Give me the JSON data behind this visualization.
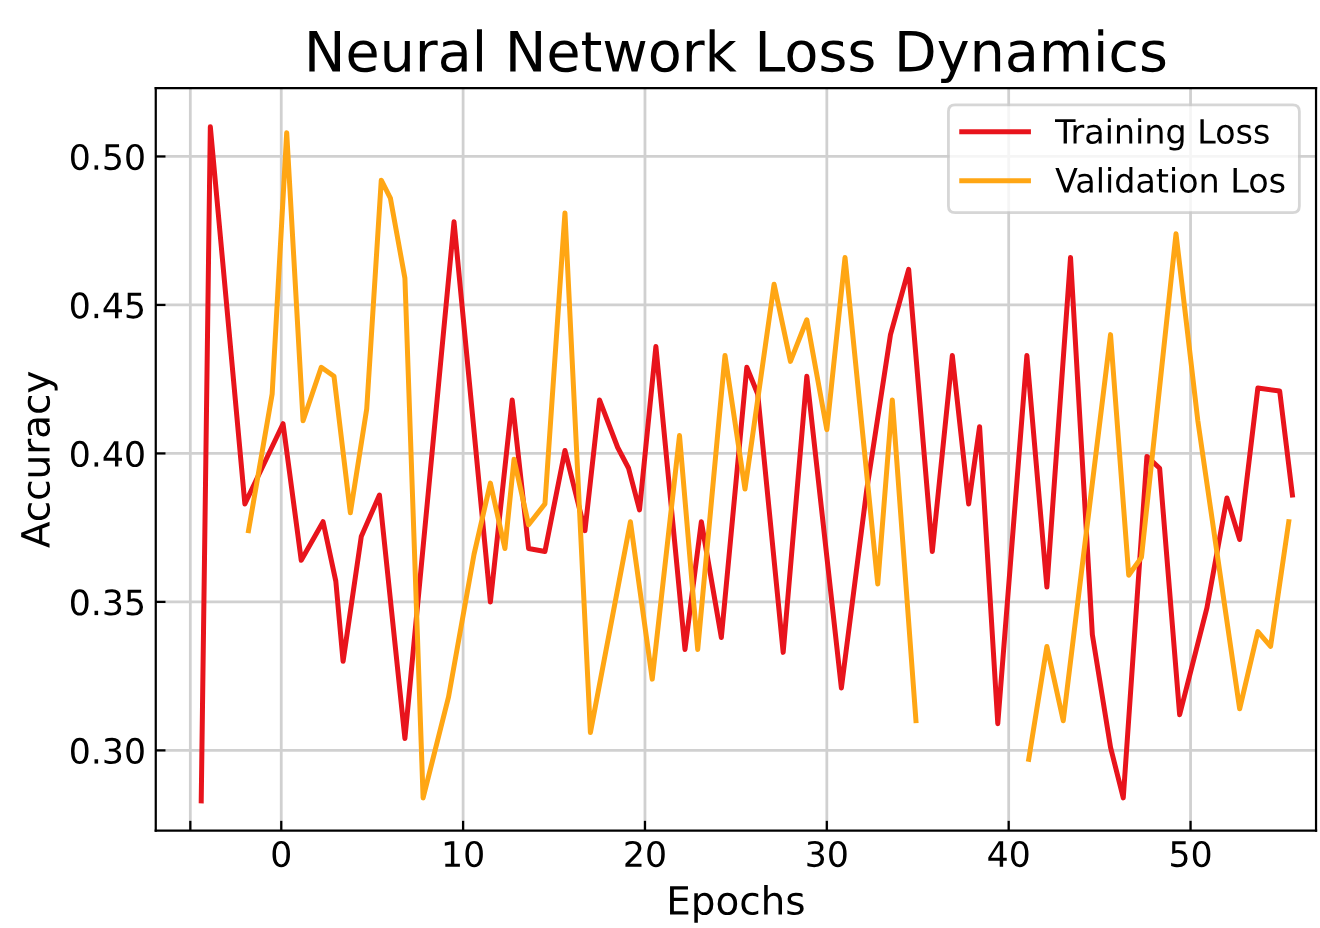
{
  "chart_data": {
    "type": "line",
    "title": "Neural Network Loss Dynamics",
    "xlabel": "Epochs",
    "ylabel": "Accuracy",
    "xlim": [
      -6.9,
      56.9
    ],
    "ylim": [
      0.273,
      0.523
    ],
    "xticks": [
      {
        "value": -5,
        "label": null
      },
      0,
      10,
      20,
      30,
      40,
      50
    ],
    "yticks": [
      {
        "value": 0.3,
        "label": "0.30"
      },
      {
        "value": 0.35,
        "label": "0.35"
      },
      {
        "value": 0.4,
        "label": "0.40"
      },
      {
        "value": 0.45,
        "label": "0.45"
      },
      {
        "value": 0.5,
        "label": "0.50"
      }
    ],
    "grid": true,
    "legend": "top right",
    "line_style": "solid",
    "marker": "none",
    "series": [
      {
        "name": "Training Loss",
        "color": "#e8141c",
        "x": [
          -4.4,
          -3.9,
          -2.0,
          0.1,
          1.1,
          2.3,
          3.0,
          3.4,
          4.4,
          5.4,
          6.8,
          9.5,
          11.5,
          12.7,
          13.6,
          14.5,
          15.6,
          16.7,
          17.5,
          18.5,
          19.1,
          19.7,
          20.6,
          22.2,
          23.1,
          24.2,
          25.6,
          26.2,
          27.6,
          28.9,
          30.8,
          32.2,
          33.5,
          34.5,
          35.8,
          36.9,
          37.8,
          38.4,
          39.4,
          41.0,
          42.1,
          43.4,
          44.6,
          45.6,
          46.3,
          47.6,
          48.3,
          49.4,
          50.9,
          52.0,
          52.7,
          53.7,
          54.9,
          55.6
        ],
        "values": [
          0.283,
          0.51,
          0.383,
          0.41,
          0.364,
          0.377,
          0.357,
          0.33,
          0.372,
          0.386,
          0.304,
          0.478,
          0.35,
          0.418,
          0.368,
          0.367,
          0.401,
          0.374,
          0.418,
          0.402,
          0.395,
          0.381,
          0.436,
          0.334,
          0.377,
          0.338,
          0.429,
          0.42,
          0.333,
          0.426,
          0.321,
          0.388,
          0.44,
          0.462,
          0.367,
          0.433,
          0.383,
          0.409,
          0.309,
          0.433,
          0.355,
          0.466,
          0.339,
          0.301,
          0.284,
          0.399,
          0.395,
          0.312,
          0.348,
          0.385,
          0.371,
          0.422,
          0.421,
          0.386
        ]
      },
      {
        "name": "Validation Los",
        "color": "#ffa614",
        "x": [
          -1.8,
          -0.5,
          0.3,
          1.2,
          2.2,
          2.9,
          3.8,
          4.7,
          5.5,
          6.0,
          6.8,
          7.8,
          9.2,
          10.6,
          11.5,
          12.3,
          12.8,
          13.6,
          14.5,
          15.6,
          17.0,
          19.2,
          20.4,
          21.9,
          22.9,
          24.4,
          25.5,
          27.1,
          28.0,
          28.9,
          30.0,
          31.0,
          32.8,
          33.6,
          34.9,
          38.0,
          41.1,
          42.1,
          43.0,
          45.6,
          46.6,
          47.3,
          49.2,
          50.4,
          52.7,
          53.7,
          54.4,
          55.4
        ],
        "values": [
          0.374,
          0.42,
          0.508,
          0.411,
          0.429,
          0.426,
          0.38,
          0.415,
          0.492,
          0.486,
          0.459,
          0.284,
          0.318,
          0.366,
          0.39,
          0.368,
          0.398,
          0.376,
          0.383,
          0.481,
          0.306,
          0.377,
          0.324,
          0.406,
          0.334,
          0.433,
          0.388,
          0.457,
          0.431,
          0.445,
          0.408,
          0.466,
          0.356,
          0.418,
          0.31,
          null,
          0.297,
          0.335,
          0.31,
          0.44,
          0.359,
          0.365,
          0.474,
          0.411,
          0.314,
          0.34,
          0.335,
          0.377
        ]
      }
    ]
  }
}
